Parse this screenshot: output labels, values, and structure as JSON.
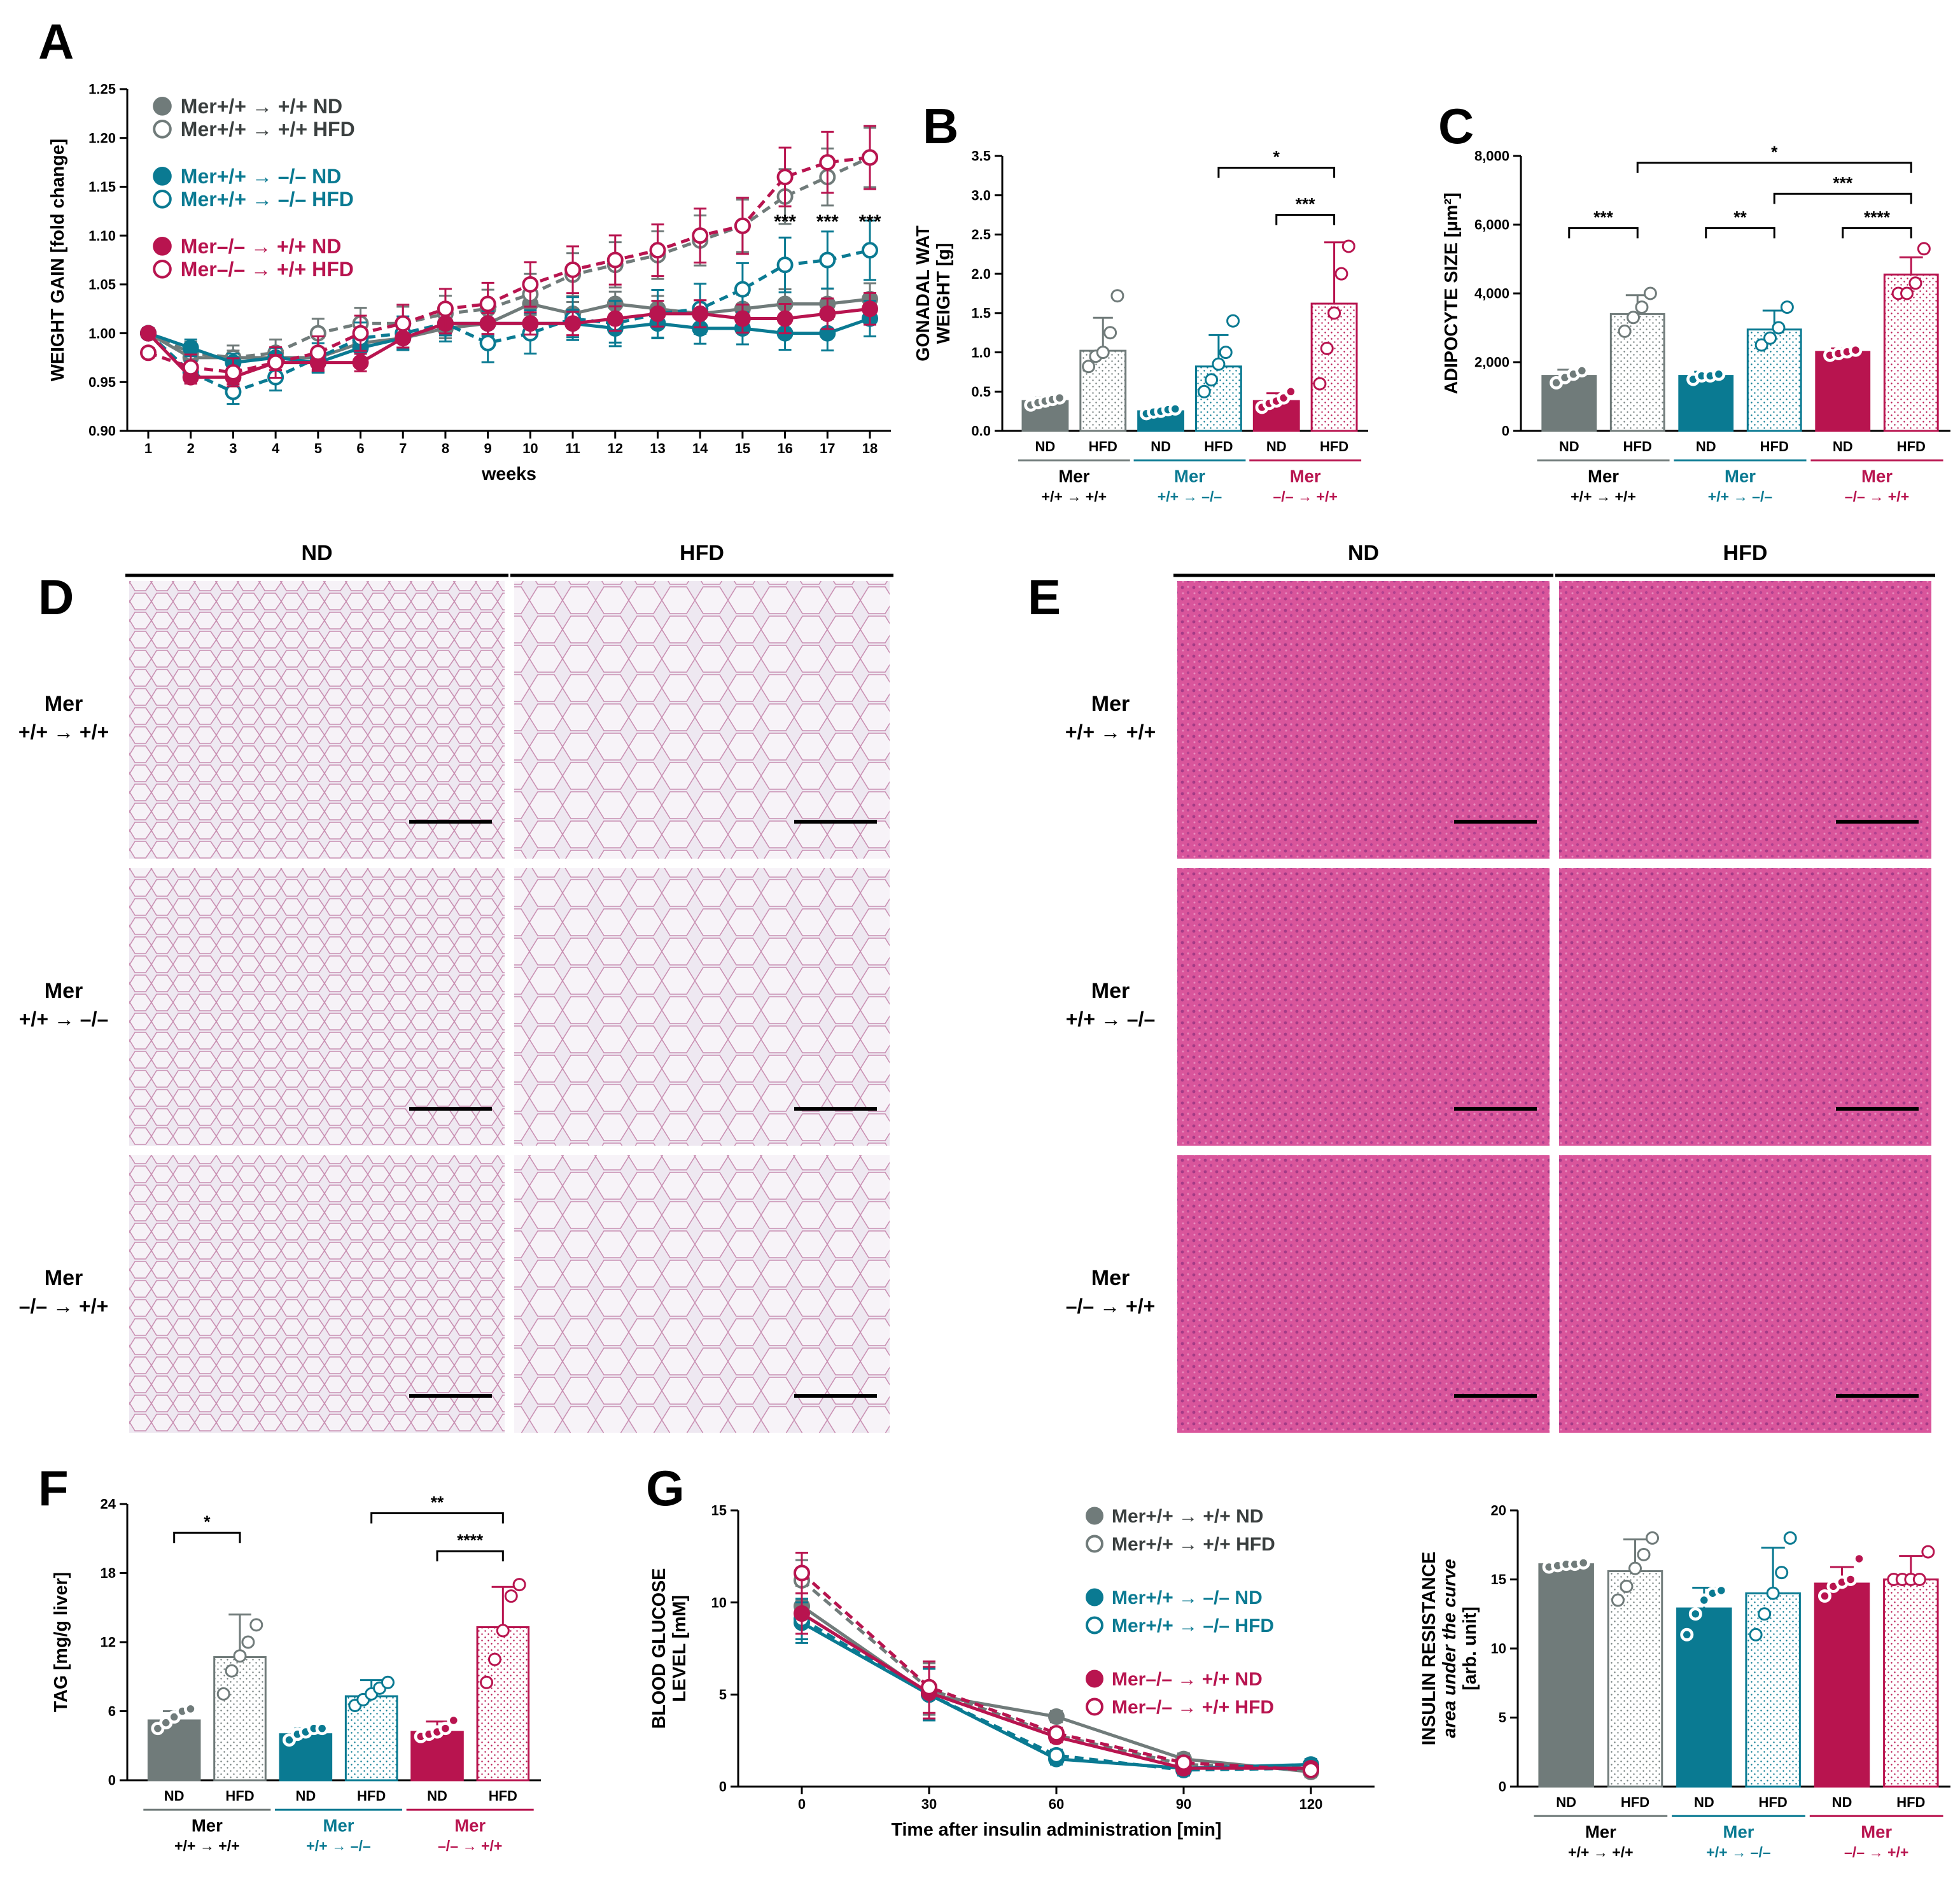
{
  "colors": {
    "wt": "#707b7a",
    "mer_bm": "#0a7a92",
    "mer_host": "#b8144f",
    "nd_tissue": "#ece6f0",
    "he_tissue": "#d34f95"
  },
  "panels": {
    "A": "A",
    "B": "B",
    "C": "C",
    "D": "D",
    "E": "E",
    "F": "F",
    "G": "G"
  },
  "group_labels": {
    "g1": {
      "name": "Mer",
      "sub": "+/+ → +/+"
    },
    "g2": {
      "name": "Mer",
      "sub": "+/+ → –/–"
    },
    "g3": {
      "name": "Mer",
      "sub": "–/– → +/+"
    }
  },
  "diet_labels": {
    "nd": "ND",
    "hfd": "HFD"
  },
  "legend": [
    {
      "label": "Mer+/+ → +/+ ND",
      "group": 0,
      "filled": true
    },
    {
      "label": "Mer+/+ → +/+ HFD",
      "group": 0,
      "filled": false
    },
    {
      "label": "Mer+/+ → –/– ND",
      "group": 1,
      "filled": true
    },
    {
      "label": "Mer+/+ → –/– HFD",
      "group": 1,
      "filled": false
    },
    {
      "label": "Mer–/– → +/+ ND",
      "group": 2,
      "filled": true
    },
    {
      "label": "Mer–/– → +/+ HFD",
      "group": 2,
      "filled": false
    }
  ],
  "histology": {
    "rows": [
      {
        "name": "Mer",
        "sub": "+/+ → +/+"
      },
      {
        "name": "Mer",
        "sub": "+/+ → –/–"
      },
      {
        "name": "Mer",
        "sub": "–/– → +/+"
      }
    ],
    "cols": [
      "ND",
      "HFD"
    ]
  },
  "chart_data": [
    {
      "id": "A",
      "type": "line",
      "xlabel": "weeks",
      "ylabel": "WEIGHT GAIN [fold change]",
      "x": [
        1,
        2,
        3,
        4,
        5,
        6,
        7,
        8,
        9,
        10,
        11,
        12,
        13,
        14,
        15,
        16,
        17,
        18
      ],
      "ylim": [
        0.9,
        1.25
      ],
      "yticks": [
        "0.90",
        "0.95",
        "1.00",
        "1.05",
        "1.10",
        "1.15",
        "1.20",
        "1.25"
      ],
      "series": [
        {
          "name": "Mer+/+ → +/+ ND",
          "values": [
            1.0,
            0.975,
            0.975,
            0.975,
            0.975,
            0.99,
            0.995,
            1.005,
            1.01,
            1.03,
            1.02,
            1.03,
            1.025,
            1.02,
            1.025,
            1.03,
            1.03,
            1.035
          ]
        },
        {
          "name": "Mer+/+ → +/+ HFD",
          "values": [
            1.0,
            0.98,
            0.975,
            0.98,
            1.0,
            1.01,
            1.01,
            1.02,
            1.025,
            1.04,
            1.06,
            1.07,
            1.08,
            1.095,
            1.11,
            1.14,
            1.16,
            1.18
          ]
        },
        {
          "name": "Mer+/+ → –/– ND",
          "values": [
            1.0,
            0.985,
            0.97,
            0.975,
            0.97,
            0.985,
            0.995,
            1.01,
            1.01,
            1.01,
            1.01,
            1.005,
            1.01,
            1.005,
            1.005,
            1.0,
            1.0,
            1.015
          ]
        },
        {
          "name": "Mer+/+ → –/– HFD",
          "values": [
            1.0,
            0.96,
            0.94,
            0.955,
            0.975,
            0.995,
            1.0,
            1.01,
            0.99,
            1.0,
            1.015,
            1.01,
            1.02,
            1.025,
            1.045,
            1.07,
            1.075,
            1.085
          ]
        },
        {
          "name": "Mer–/– → +/+ ND",
          "values": [
            1.0,
            0.955,
            0.955,
            0.97,
            0.97,
            0.97,
            0.995,
            1.01,
            1.01,
            1.01,
            1.01,
            1.015,
            1.02,
            1.02,
            1.015,
            1.015,
            1.02,
            1.025
          ]
        },
        {
          "name": "Mer–/– → +/+ HFD",
          "values": [
            0.98,
            0.965,
            0.96,
            0.97,
            0.98,
            1.0,
            1.01,
            1.025,
            1.03,
            1.05,
            1.065,
            1.075,
            1.085,
            1.1,
            1.11,
            1.16,
            1.175,
            1.18
          ]
        }
      ],
      "sig_labels": [
        "***",
        "***",
        "***"
      ],
      "sig_x": [
        16,
        17,
        18
      ]
    },
    {
      "id": "B",
      "type": "bar",
      "ylabel": "GONADAL WAT WEIGHT [g]",
      "ylabel_lines": [
        "GONADAL WAT",
        "WEIGHT [g]"
      ],
      "ylim": [
        0,
        3.5
      ],
      "yticks": [
        "0.0",
        "0.5",
        "1.0",
        "1.5",
        "2.0",
        "2.5",
        "3.0",
        "3.5"
      ],
      "categories": [
        "ND",
        "HFD",
        "ND",
        "HFD",
        "ND",
        "HFD"
      ],
      "values": [
        0.38,
        1.02,
        0.25,
        0.82,
        0.38,
        1.62
      ],
      "errors": [
        0.05,
        0.42,
        0.04,
        0.4,
        0.1,
        0.78
      ],
      "points": [
        [
          0.33,
          0.36,
          0.38,
          0.4,
          0.42
        ],
        [
          0.82,
          0.95,
          1.0,
          1.25,
          1.72
        ],
        [
          0.22,
          0.24,
          0.25,
          0.27,
          0.28
        ],
        [
          0.5,
          0.65,
          0.85,
          1.0,
          1.4
        ],
        [
          0.3,
          0.35,
          0.38,
          0.42,
          0.5
        ],
        [
          0.6,
          1.05,
          1.5,
          2.0,
          2.35
        ]
      ],
      "brackets": [
        {
          "from": 3,
          "to": 5,
          "label": "*",
          "level": 3.35
        },
        {
          "from": 4,
          "to": 5,
          "label": "***",
          "level": 2.75
        }
      ]
    },
    {
      "id": "C",
      "type": "bar",
      "ylabel": "ADIPOCYTE SIZE [µm²]",
      "ylim": [
        0,
        8000
      ],
      "yticks": [
        "0",
        "2,000",
        "4,000",
        "6,000",
        "8,000"
      ],
      "categories": [
        "ND",
        "HFD",
        "ND",
        "HFD",
        "ND",
        "HFD"
      ],
      "values": [
        1600,
        3400,
        1600,
        2950,
        2300,
        4550
      ],
      "errors": [
        180,
        550,
        120,
        550,
        100,
        500
      ],
      "points": [
        [
          1400,
          1550,
          1650,
          1750
        ],
        [
          2900,
          3300,
          3600,
          4000
        ],
        [
          1500,
          1600,
          1600,
          1650
        ],
        [
          2500,
          2700,
          3000,
          3600
        ],
        [
          2200,
          2250,
          2300,
          2350
        ],
        [
          4000,
          4000,
          4300,
          5300
        ]
      ],
      "brackets": [
        {
          "from": 1,
          "to": 5,
          "label": "*",
          "level": 7800
        },
        {
          "from": 0,
          "to": 1,
          "label": "***",
          "level": 5900
        },
        {
          "from": 2,
          "to": 3,
          "label": "**",
          "level": 5900
        },
        {
          "from": 3,
          "to": 5,
          "label": "***",
          "level": 6900
        },
        {
          "from": 4,
          "to": 5,
          "label": "****",
          "level": 5900
        }
      ]
    },
    {
      "id": "F",
      "type": "bar",
      "ylabel": "TAG [mg/g liver]",
      "ylim": [
        0,
        24
      ],
      "yticks": [
        "0",
        "6",
        "12",
        "18",
        "24"
      ],
      "categories": [
        "ND",
        "HFD",
        "ND",
        "HFD",
        "ND",
        "HFD"
      ],
      "values": [
        5.2,
        10.7,
        4.0,
        7.3,
        4.2,
        13.3
      ],
      "errors": [
        0.8,
        3.7,
        0.5,
        1.4,
        0.9,
        3.5
      ],
      "points": [
        [
          4.5,
          5.0,
          5.5,
          6.0,
          6.2
        ],
        [
          7.5,
          9.5,
          10.8,
          12.0,
          13.5
        ],
        [
          3.5,
          4.0,
          4.2,
          4.5,
          4.5
        ],
        [
          6.5,
          7.0,
          7.5,
          8.0,
          8.5
        ],
        [
          3.8,
          4.0,
          4.2,
          4.5,
          5.2
        ],
        [
          8.5,
          10.5,
          13.0,
          16.0,
          17.0
        ]
      ],
      "brackets": [
        {
          "from": 0,
          "to": 1,
          "label": "*",
          "level": 21.5
        },
        {
          "from": 3,
          "to": 5,
          "label": "**",
          "level": 23.2
        },
        {
          "from": 4,
          "to": 5,
          "label": "****",
          "level": 19.9
        }
      ]
    },
    {
      "id": "G1",
      "type": "line",
      "xlabel": "Time after insulin administration [min]",
      "ylabel": "BLOOD GLUCOSE LEVEL [mM]",
      "ylabel_lines": [
        "BLOOD GLUCOSE",
        "LEVEL [mM]"
      ],
      "x": [
        0,
        30,
        60,
        90,
        120
      ],
      "xticks": [
        "0",
        "30",
        "60",
        "90",
        "120"
      ],
      "ylim": [
        0,
        15
      ],
      "yticks": [
        "0",
        "5",
        "10",
        "15"
      ],
      "series": [
        {
          "name": "Mer+/+ → +/+ ND",
          "values": [
            9.8,
            5.0,
            3.8,
            1.5,
            0.8
          ]
        },
        {
          "name": "Mer+/+ → +/+ HFD",
          "values": [
            11.2,
            5.3,
            2.8,
            1.2,
            1.0
          ]
        },
        {
          "name": "Mer+/+ → –/– ND",
          "values": [
            8.9,
            5.0,
            1.5,
            1.0,
            1.2
          ]
        },
        {
          "name": "Mer+/+ → –/– HFD",
          "values": [
            9.1,
            5.0,
            1.7,
            0.9,
            1.0
          ]
        },
        {
          "name": "Mer–/– → +/+ ND",
          "values": [
            9.4,
            5.1,
            2.7,
            1.0,
            1.0
          ]
        },
        {
          "name": "Mer–/– → +/+ HFD",
          "values": [
            11.6,
            5.4,
            2.9,
            1.3,
            0.9
          ]
        }
      ]
    },
    {
      "id": "G2",
      "type": "bar",
      "ylabel": "INSULIN RESISTANCE area under the curve [arb. unit]",
      "ylabel_lines": [
        "INSULIN RESISTANCE",
        "area under the curve",
        "[arb. unit]"
      ],
      "ylim": [
        0,
        20
      ],
      "yticks": [
        "0",
        "5",
        "10",
        "15",
        "20"
      ],
      "categories": [
        "ND",
        "HFD",
        "ND",
        "HFD",
        "ND",
        "HFD"
      ],
      "values": [
        16.1,
        15.6,
        12.9,
        14.0,
        14.7,
        15.0
      ],
      "errors": [
        0.2,
        2.3,
        1.5,
        3.3,
        1.2,
        1.7
      ],
      "points": [
        [
          15.9,
          16.0,
          16.1,
          16.1,
          16.2
        ],
        [
          13.5,
          14.5,
          15.8,
          16.8,
          18.0
        ],
        [
          11.0,
          12.5,
          13.5,
          14.0,
          14.2
        ],
        [
          11.0,
          12.5,
          14.0,
          15.5,
          18.0
        ],
        [
          13.8,
          14.5,
          14.8,
          15.0,
          16.5
        ],
        [
          15.0,
          15.0,
          15.0,
          15.0,
          17.0
        ]
      ],
      "brackets": []
    }
  ]
}
